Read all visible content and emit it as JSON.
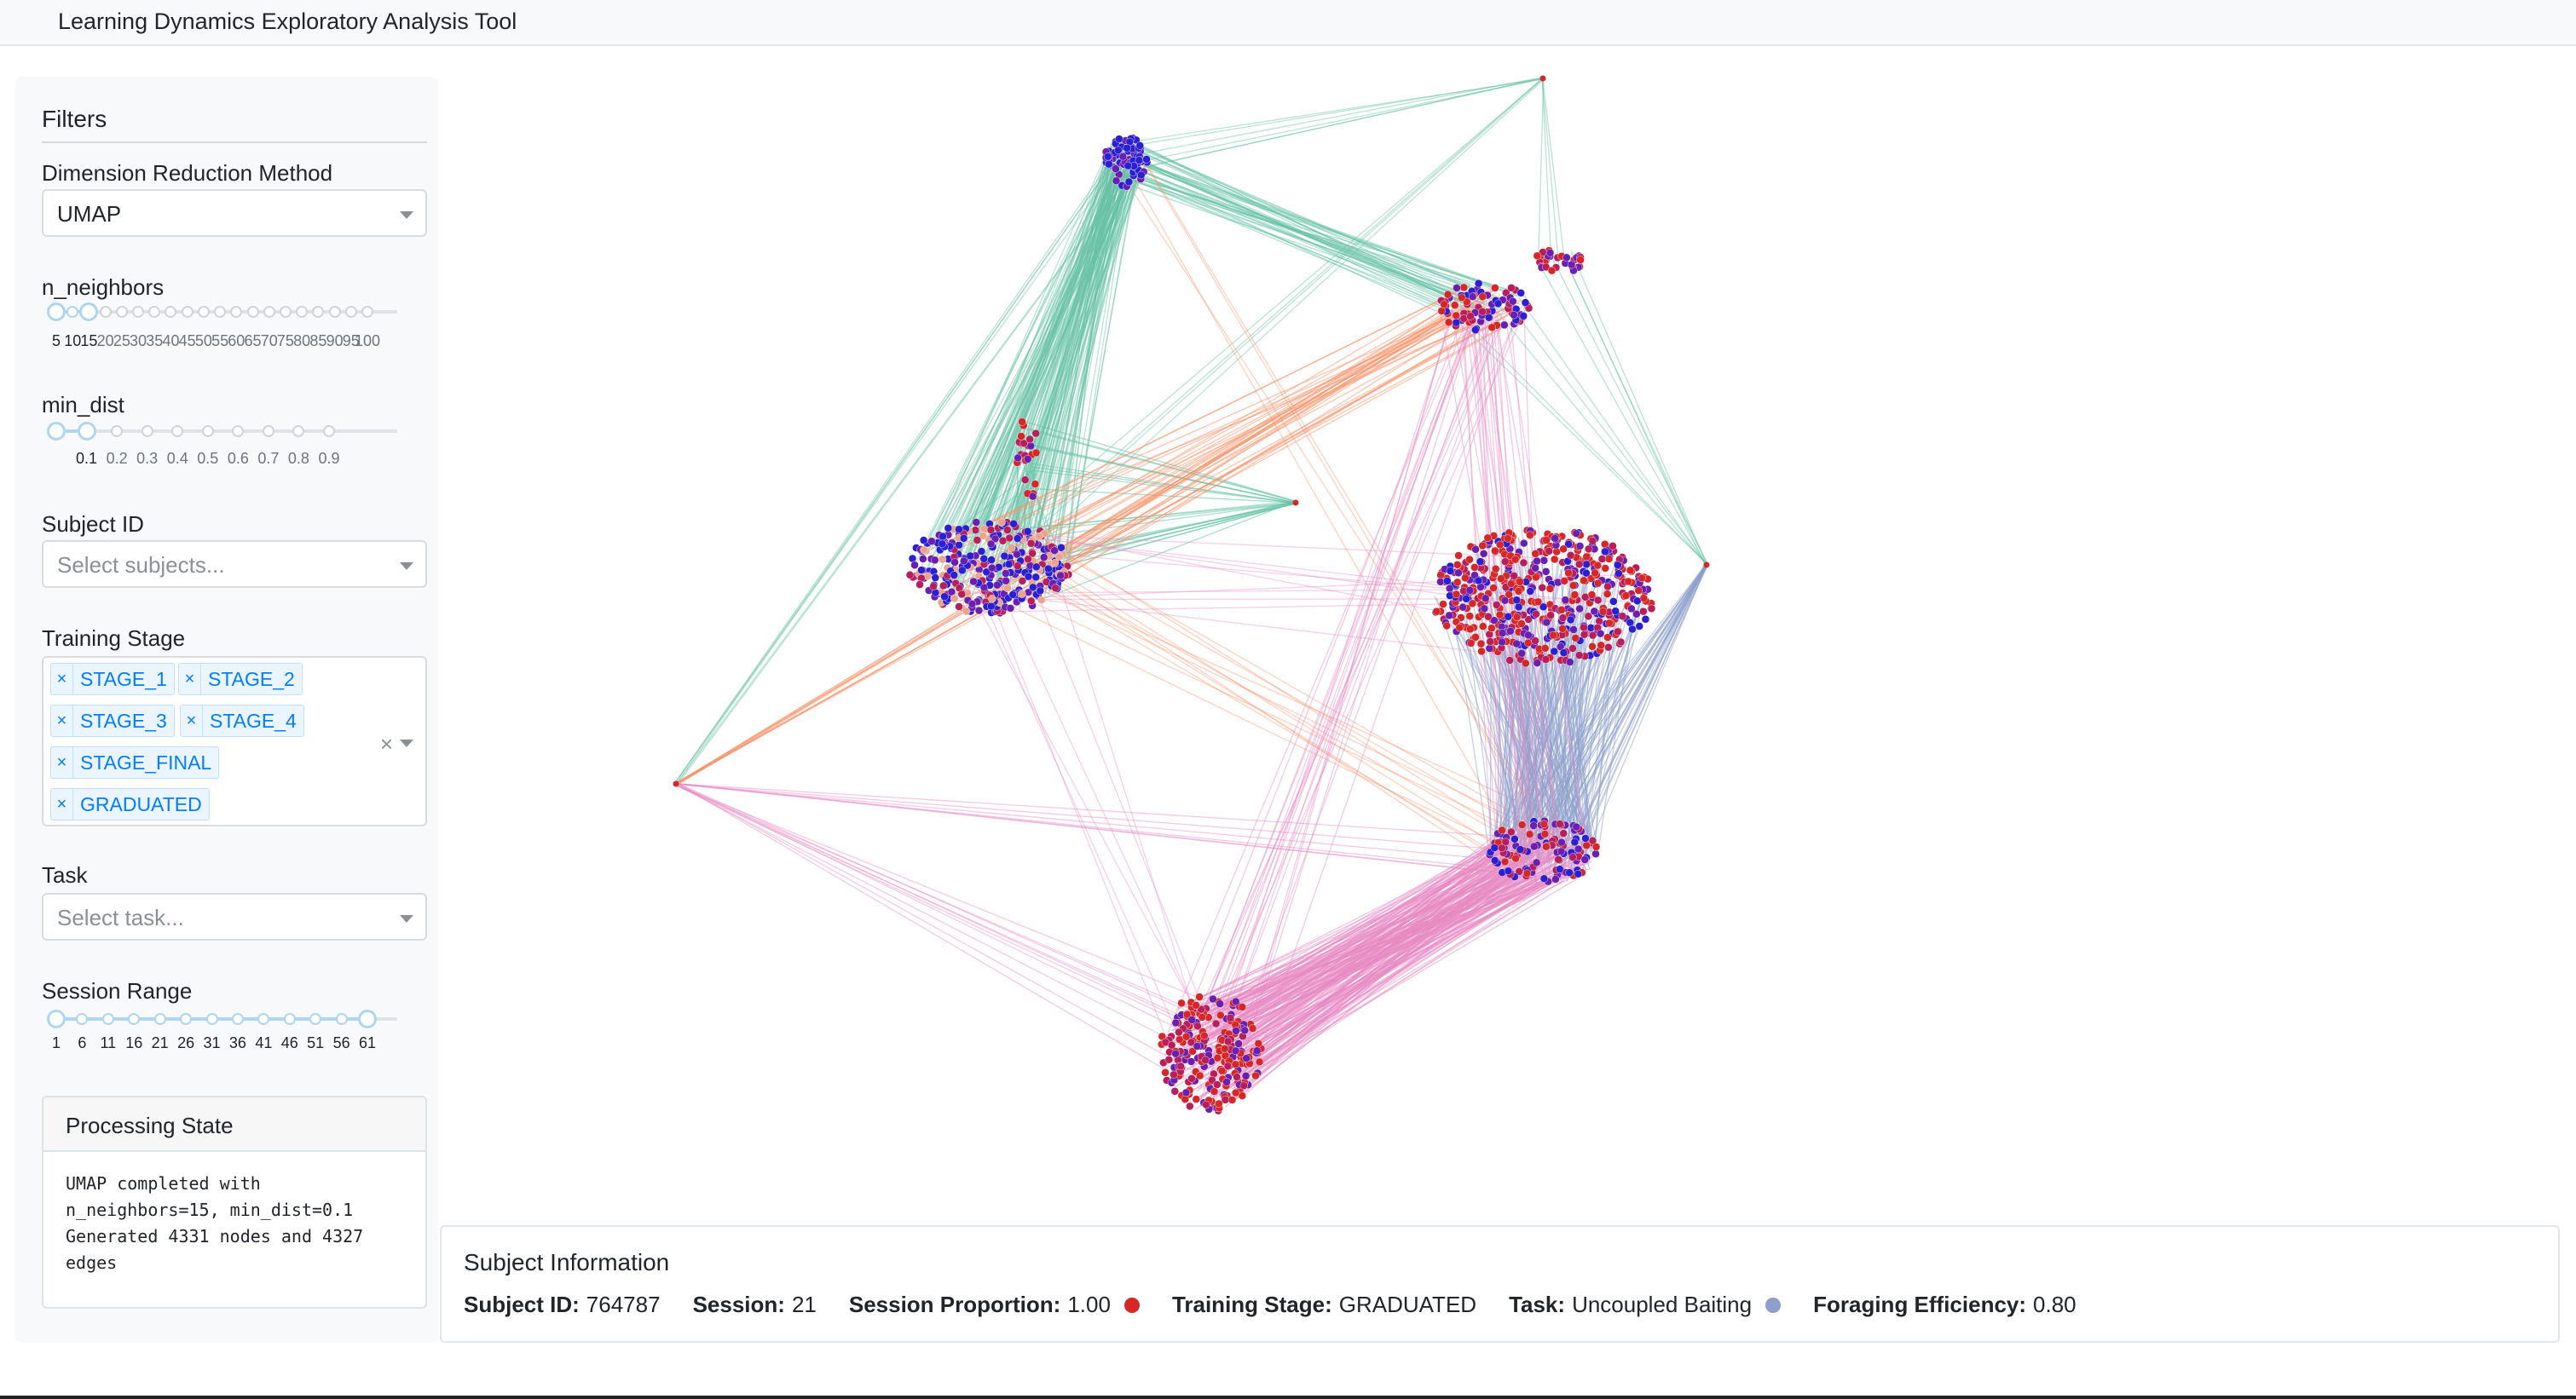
{
  "app": {
    "title": "Learning Dynamics Exploratory Analysis Tool"
  },
  "filters": {
    "title": "Filters",
    "method": {
      "label": "Dimension Reduction Method",
      "value": "UMAP"
    },
    "n_neighbors": {
      "label": "n_neighbors",
      "marks": [
        "5",
        "10",
        "15",
        "20",
        "25",
        "30",
        "35",
        "40",
        "45",
        "50",
        "55",
        "60",
        "65",
        "70",
        "75",
        "80",
        "85",
        "90",
        "95",
        "100"
      ],
      "value": 15
    },
    "min_dist": {
      "label": "min_dist",
      "marks": [
        "0.1",
        "0.2",
        "0.3",
        "0.4",
        "0.5",
        "0.6",
        "0.7",
        "0.8",
        "0.9"
      ],
      "value": 0.1
    },
    "subject": {
      "label": "Subject ID",
      "placeholder": "Select subjects..."
    },
    "training_stage": {
      "label": "Training Stage",
      "selected": [
        "STAGE_1",
        "STAGE_2",
        "STAGE_3",
        "STAGE_4",
        "STAGE_FINAL",
        "GRADUATED"
      ]
    },
    "task": {
      "label": "Task",
      "placeholder": "Select task..."
    },
    "session_range": {
      "label": "Session Range",
      "marks": [
        "1",
        "6",
        "11",
        "16",
        "21",
        "26",
        "31",
        "36",
        "41",
        "46",
        "51",
        "56",
        "61"
      ],
      "range": [
        1,
        61
      ]
    }
  },
  "processing": {
    "title": "Processing State",
    "text": "UMAP completed with\nn_neighbors=15, min_dist=0.1\nGenerated 4331 nodes and 4327\nedges"
  },
  "subject_info": {
    "title": "Subject Information",
    "subject_id_label": "Subject ID:",
    "subject_id": "764787",
    "session_label": "Session:",
    "session": "21",
    "proportion_label": "Session Proportion:",
    "proportion": "1.00",
    "proportion_color": "#d62728",
    "stage_label": "Training Stage:",
    "stage": "GRADUATED",
    "task_label": "Task:",
    "task": "Uncoupled Baiting",
    "task_color": "#8da0cb",
    "efficiency_label": "Foraging Efficiency:",
    "efficiency": "0.80"
  },
  "graph": {
    "edge_colors": {
      "green": "#66c2a5",
      "orange": "#fc8d62",
      "purple": "#8da0cb",
      "pink": "#e78ac3"
    },
    "node_colors": [
      "#2b1fd1",
      "#6a1fb0",
      "#b81e5a",
      "#d62728"
    ]
  }
}
